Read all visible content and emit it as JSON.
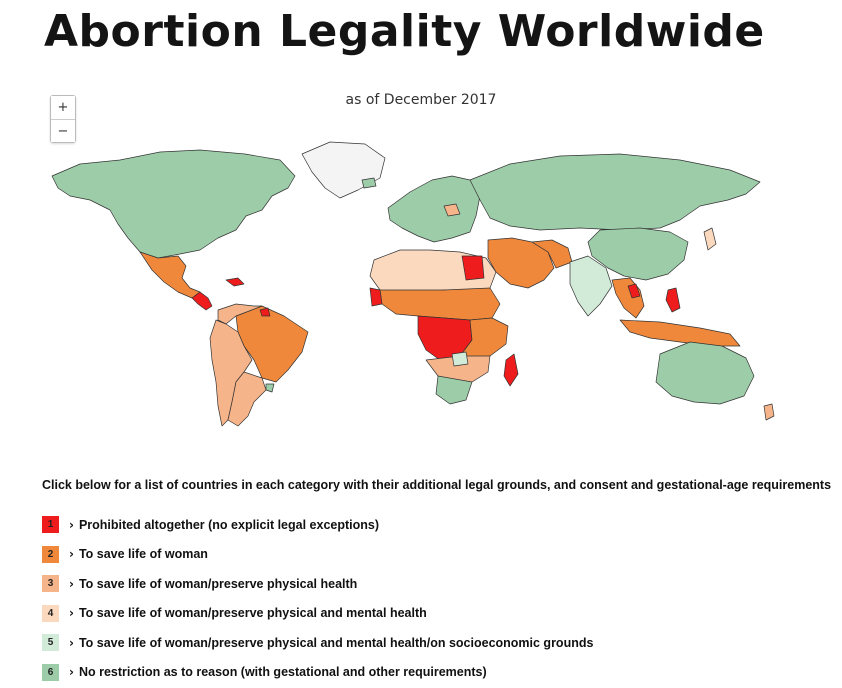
{
  "title": "Abortion Legality Worldwide",
  "subtitle": "as of December 2017",
  "zoom": {
    "in": "+",
    "out": "−"
  },
  "legend_instruction": "Click below for a list of countries in each category with their additional legal grounds, and consent and gestational-age requirements",
  "categories": [
    {
      "num": "1",
      "label": "Prohibited altogether (no explicit legal exceptions)",
      "color": "#ee1c1c",
      "text_color": "#222"
    },
    {
      "num": "2",
      "label": "To save life of woman",
      "color": "#f0883c",
      "text_color": "#222"
    },
    {
      "num": "3",
      "label": "To save life of woman/preserve physical health",
      "color": "#f6b48a",
      "text_color": "#222"
    },
    {
      "num": "4",
      "label": "To save life of woman/preserve physical and mental health",
      "color": "#fbd9bf",
      "text_color": "#222"
    },
    {
      "num": "5",
      "label": "To save life of woman/preserve physical and mental health/on socioeconomic grounds",
      "color": "#d2ebd8",
      "text_color": "#222"
    },
    {
      "num": "6",
      "label": "No restriction as to reason (with gestational and other requirements)",
      "color": "#9dcca8",
      "text_color": "#222"
    }
  ],
  "map_colors": {
    "no_data": "#f4f4f4",
    "ocean": "#ffffff",
    "border": "#333333"
  }
}
